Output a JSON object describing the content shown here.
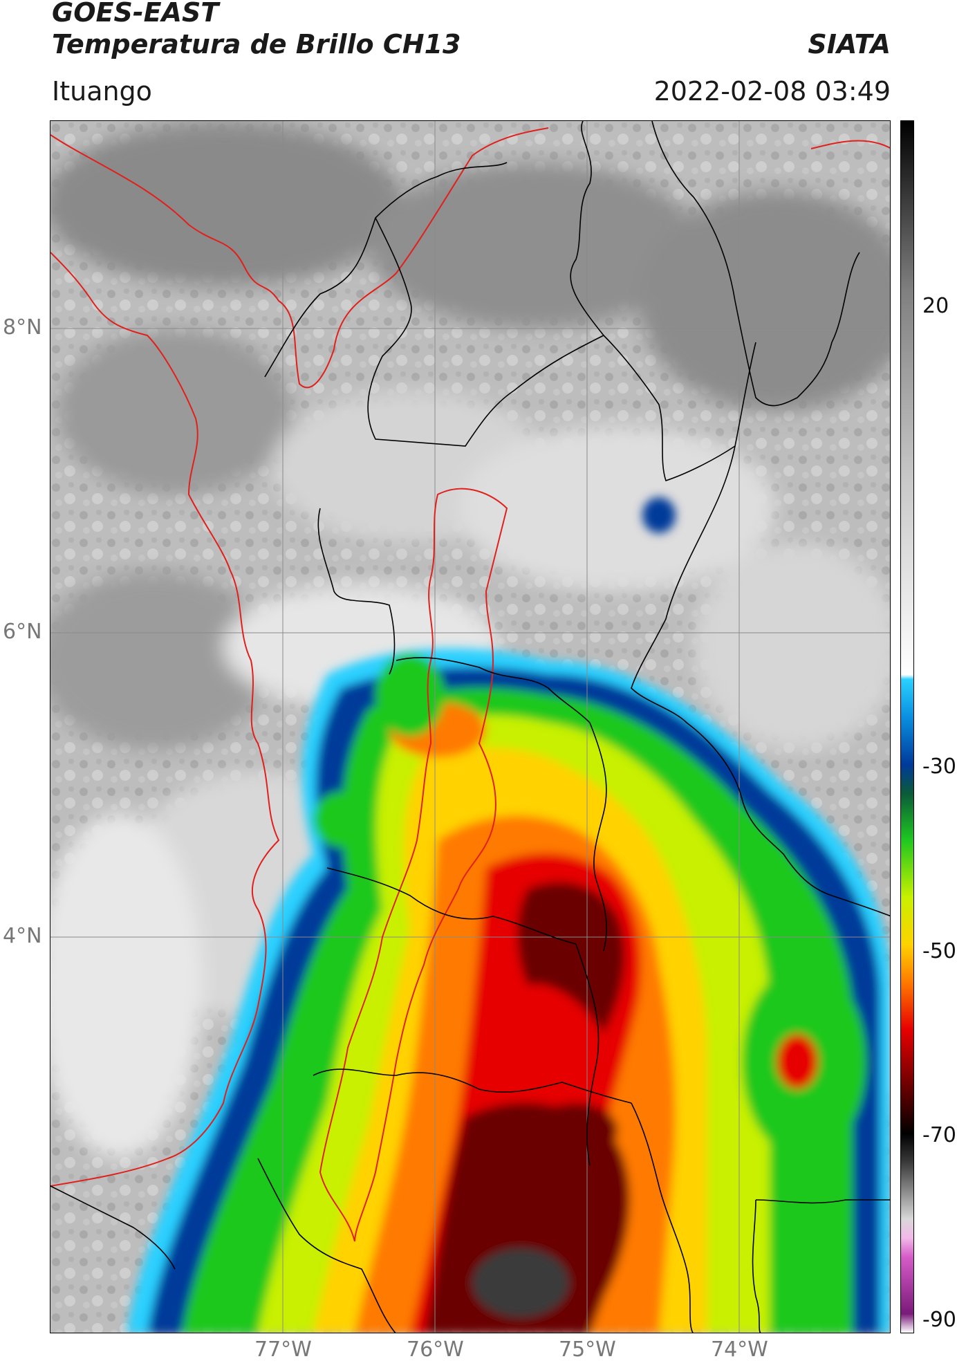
{
  "header": {
    "line1": "GOES-EAST",
    "line2": "Temperatura de Brillo CH13",
    "right_brand": "SIATA",
    "location": "Ituango",
    "datetime": "2022-02-08 03:49"
  },
  "map": {
    "lat_labels": [
      "8°N",
      "6°N",
      "4°N"
    ],
    "lon_labels": [
      "77°W",
      "76°W",
      "75°W",
      "74°W"
    ],
    "colors": {
      "border_department": "#000000",
      "border_basin": "#e0201c",
      "grid": "#8a8a8a"
    }
  },
  "colorbar": {
    "tick_labels": [
      "20",
      "-30",
      "-50",
      "-70",
      "-90"
    ],
    "stops": [
      {
        "value": -90,
        "color": "#ffffff"
      },
      {
        "value": -88,
        "color": "#7a1a7a"
      },
      {
        "value": -82,
        "color": "#d65cc8"
      },
      {
        "value": -80,
        "color": "#f2b8e8"
      },
      {
        "value": -78,
        "color": "#d8d8d8"
      },
      {
        "value": -72,
        "color": "#3a3a3a"
      },
      {
        "value": -69,
        "color": "#000000"
      },
      {
        "value": -64,
        "color": "#6a0000"
      },
      {
        "value": -58,
        "color": "#e60000"
      },
      {
        "value": -53,
        "color": "#ff7a00"
      },
      {
        "value": -49,
        "color": "#ffd200"
      },
      {
        "value": -44,
        "color": "#c8f000"
      },
      {
        "value": -38,
        "color": "#1fc81f"
      },
      {
        "value": -33,
        "color": "#0a5a3a"
      },
      {
        "value": -30,
        "color": "#003a9a"
      },
      {
        "value": -25,
        "color": "#0a8fe0"
      },
      {
        "value": -21,
        "color": "#2ad0ff"
      },
      {
        "value": -20.5,
        "color": "#ffffff"
      },
      {
        "value": 0,
        "color": "#c8c8c8"
      },
      {
        "value": 20,
        "color": "#808080"
      },
      {
        "value": 38,
        "color": "#000000"
      }
    ]
  }
}
